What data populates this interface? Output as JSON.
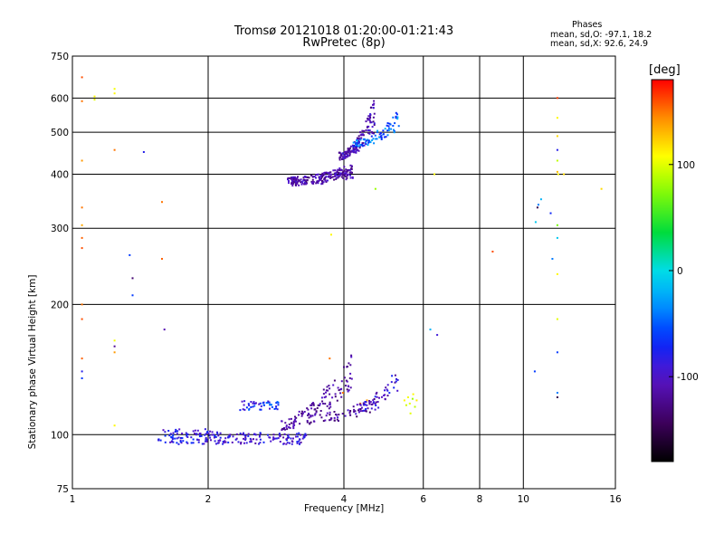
{
  "header": {
    "title_line1": "Tromsø 20121018 01:20:00-01:21:43",
    "title_line2": "RwPretec (8p)"
  },
  "phases_box": {
    "heading": "Phases",
    "line1": "mean, sd,O: -97.1, 18.2",
    "line2": "mean, sd,X:  92.6, 24.9"
  },
  "colorbar": {
    "unit": "[deg]",
    "ticks": [
      "100",
      "0",
      "-100"
    ],
    "tick_values": [
      100,
      0,
      -100
    ],
    "range": [
      -180,
      180
    ]
  },
  "chart_data": {
    "type": "scatter",
    "xlabel": "Frequency [MHz]",
    "ylabel": "Stationary phase Virtual Height [km]",
    "xscale": "log",
    "yscale": "log",
    "xlim": [
      1,
      16
    ],
    "ylim": [
      75,
      750
    ],
    "xticks": [
      1,
      2,
      4,
      6,
      8,
      10,
      16
    ],
    "yticks": [
      75,
      100,
      200,
      300,
      400,
      500,
      600,
      750
    ],
    "grid": true,
    "color_variable": "phase [deg]",
    "points": [
      [
        1.05,
        670,
        160
      ],
      [
        1.05,
        590,
        150
      ],
      [
        1.05,
        430,
        140
      ],
      [
        1.05,
        335,
        150
      ],
      [
        1.05,
        305,
        135
      ],
      [
        1.05,
        285,
        155
      ],
      [
        1.05,
        270,
        160
      ],
      [
        1.05,
        200,
        150
      ],
      [
        1.05,
        185,
        160
      ],
      [
        1.05,
        150,
        155
      ],
      [
        1.05,
        140,
        -80
      ],
      [
        1.05,
        135,
        -60
      ],
      [
        1.12,
        605,
        110
      ],
      [
        1.12,
        595,
        100
      ],
      [
        1.24,
        630,
        105
      ],
      [
        1.24,
        615,
        110
      ],
      [
        1.24,
        455,
        150
      ],
      [
        1.24,
        165,
        105
      ],
      [
        1.24,
        160,
        -120
      ],
      [
        1.24,
        155,
        140
      ],
      [
        1.24,
        105,
        110
      ],
      [
        1.34,
        260,
        -60
      ],
      [
        1.36,
        230,
        -135
      ],
      [
        1.36,
        210,
        -60
      ],
      [
        1.44,
        450,
        -80
      ],
      [
        1.58,
        345,
        150
      ],
      [
        1.58,
        255,
        155
      ],
      [
        1.6,
        175,
        -110
      ],
      [
        3.75,
        290,
        110
      ],
      [
        3.72,
        150,
        150
      ],
      [
        3.98,
        125,
        150
      ],
      [
        4.35,
        118,
        150
      ],
      [
        4.5,
        120,
        140
      ],
      [
        4.7,
        370,
        80
      ],
      [
        6.22,
        175,
        -20
      ],
      [
        6.44,
        170,
        -90
      ],
      [
        6.35,
        400,
        110
      ],
      [
        8.55,
        265,
        160
      ],
      [
        10.6,
        140,
        -60
      ],
      [
        10.8,
        340,
        -40
      ],
      [
        10.75,
        335,
        -150
      ],
      [
        10.95,
        350,
        -20
      ],
      [
        10.65,
        310,
        -10
      ],
      [
        11.6,
        255,
        -40
      ],
      [
        11.5,
        325,
        -70
      ],
      [
        11.9,
        600,
        165
      ],
      [
        11.9,
        540,
        110
      ],
      [
        11.9,
        490,
        120
      ],
      [
        11.9,
        455,
        -80
      ],
      [
        11.9,
        430,
        90
      ],
      [
        11.9,
        405,
        130
      ],
      [
        11.95,
        400,
        110
      ],
      [
        11.9,
        305,
        70
      ],
      [
        11.9,
        285,
        -10
      ],
      [
        11.9,
        235,
        110
      ],
      [
        11.9,
        185,
        100
      ],
      [
        11.9,
        155,
        -60
      ],
      [
        11.9,
        125,
        -40
      ],
      [
        11.9,
        122,
        -150
      ],
      [
        12.3,
        400,
        120
      ],
      [
        14.9,
        370,
        120
      ],
      [
        5.45,
        120,
        110
      ],
      [
        5.55,
        122,
        105
      ],
      [
        5.6,
        118,
        100
      ],
      [
        5.7,
        124,
        110
      ],
      [
        5.75,
        116,
        90
      ],
      [
        5.8,
        120,
        115
      ],
      [
        5.5,
        117,
        95
      ],
      [
        5.62,
        112,
        100
      ],
      [
        5.68,
        121,
        80
      ]
    ],
    "clusters": [
      {
        "fx": [
          1.55,
          2.1
        ],
        "hbase": 99,
        "hspread": 4,
        "n": 95,
        "phase": [
          -110,
          -60
        ],
        "shape": "flat"
      },
      {
        "fx": [
          2.1,
          3.3
        ],
        "hbase": 98,
        "hspread": 3,
        "n": 120,
        "phase": [
          -115,
          -70
        ],
        "shape": "flat"
      },
      {
        "fx": [
          2.35,
          2.9
        ],
        "hbase": 117,
        "hspread": 3,
        "n": 45,
        "phase": [
          -100,
          -40
        ],
        "shape": "flat"
      },
      {
        "fx": [
          2.9,
          4.2
        ],
        "hbase": 105,
        "hspread": 35,
        "n": 120,
        "phase": [
          -135,
          -95
        ],
        "shape": "rise"
      },
      {
        "fx": [
          3.2,
          4.8
        ],
        "hbase": 108,
        "hspread": 10,
        "n": 70,
        "phase": [
          -140,
          -90
        ],
        "shape": "rise"
      },
      {
        "fx": [
          4.3,
          5.3
        ],
        "hbase": 115,
        "hspread": 20,
        "n": 45,
        "phase": [
          -120,
          -70
        ],
        "shape": "rise"
      },
      {
        "fx": [
          3.0,
          4.2
        ],
        "hbase": 385,
        "hspread": 25,
        "n": 220,
        "phase": [
          -135,
          -90
        ],
        "shape": "upper"
      },
      {
        "fx": [
          3.9,
          4.7
        ],
        "hbase": 440,
        "hspread": 120,
        "n": 160,
        "phase": [
          -130,
          -85
        ],
        "shape": "upper"
      },
      {
        "fx": [
          4.2,
          5.3
        ],
        "hbase": 470,
        "hspread": 70,
        "n": 80,
        "phase": [
          -80,
          -20
        ],
        "shape": "upper"
      }
    ]
  }
}
